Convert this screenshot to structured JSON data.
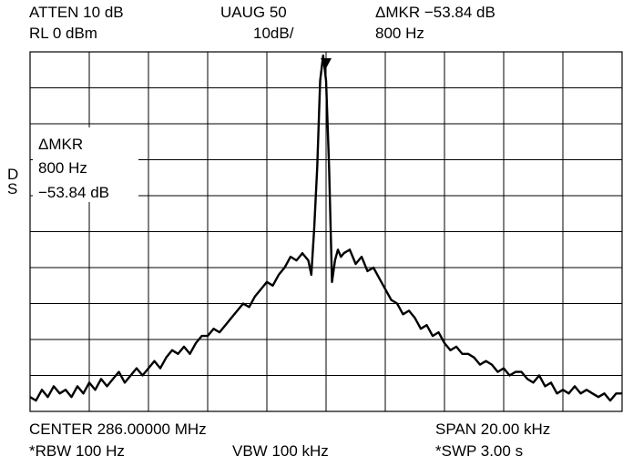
{
  "header": {
    "atten": "ATTEN 10 dB",
    "rl": "RL 0 dBm",
    "vavg": "UAUG 50",
    "scale": "10dB/",
    "dmkr_top": "ΔMKR −53.84 dB",
    "dmkr_freq_top": "800 Hz"
  },
  "footer": {
    "center": "CENTER 286.00000 MHz",
    "span": "SPAN 20.00 kHz",
    "rbw": "*RBW 100 Hz",
    "vbw": "VBW 100 kHz",
    "swp": "*SWP 3.00 s"
  },
  "side": {
    "d": "D",
    "s": "S"
  },
  "marker_box": {
    "title": "ΔMKR",
    "freq": "800 Hz",
    "level": "−53.84 dB"
  },
  "chart_data": {
    "type": "line",
    "title": "",
    "xlabel": "",
    "ylabel": "",
    "x_unit": "kHz offset from center",
    "y_unit": "dBm",
    "xlim": [
      -10,
      10
    ],
    "ylim": [
      -100,
      0
    ],
    "grid": true,
    "grid_divisions": {
      "x": 10,
      "y": 10
    },
    "marker": {
      "x": 0,
      "y": -1,
      "delta_x_hz": 800,
      "delta_y_db": -53.84
    },
    "series": [
      {
        "x": [
          -10.0,
          -9.8,
          -9.6,
          -9.4,
          -9.2,
          -9.0,
          -8.8,
          -8.6,
          -8.4,
          -8.2,
          -8.0,
          -7.8,
          -7.6,
          -7.4,
          -7.2,
          -7.0,
          -6.8,
          -6.6,
          -6.4,
          -6.2,
          -6.0,
          -5.8,
          -5.6,
          -5.4,
          -5.2,
          -5.0,
          -4.8,
          -4.6,
          -4.4,
          -4.2,
          -4.0,
          -3.8,
          -3.6,
          -3.4,
          -3.2,
          -3.0,
          -2.8,
          -2.6,
          -2.4,
          -2.2,
          -2.0,
          -1.8,
          -1.6,
          -1.4,
          -1.2,
          -1.0,
          -0.8,
          -0.6,
          -0.5,
          -0.4,
          -0.3,
          -0.2,
          -0.1,
          0.0,
          0.1,
          0.2,
          0.3,
          0.4,
          0.5,
          0.6,
          0.8,
          1.0,
          1.2,
          1.4,
          1.6,
          1.8,
          2.0,
          2.2,
          2.4,
          2.6,
          2.8,
          3.0,
          3.2,
          3.4,
          3.6,
          3.8,
          4.0,
          4.2,
          4.4,
          4.6,
          4.8,
          5.0,
          5.2,
          5.4,
          5.6,
          5.8,
          6.0,
          6.2,
          6.4,
          6.6,
          6.8,
          7.0,
          7.2,
          7.4,
          7.6,
          7.8,
          8.0,
          8.2,
          8.4,
          8.6,
          8.8,
          9.0,
          9.2,
          9.4,
          9.6,
          9.8,
          10.0
        ],
        "y": [
          -96,
          -97,
          -94,
          -96,
          -93,
          -95,
          -94,
          -96,
          -93,
          -95,
          -92,
          -94,
          -91,
          -93,
          -91,
          -89,
          -92,
          -90,
          -88,
          -90,
          -88,
          -86,
          -88,
          -85,
          -83,
          -84,
          -82,
          -84,
          -81,
          -79,
          -79,
          -77,
          -78,
          -76,
          -74,
          -72,
          -70,
          -71,
          -68,
          -66,
          -64,
          -65,
          -62,
          -60,
          -57,
          -58,
          -56,
          -58,
          -62,
          -49,
          -32,
          -8,
          -1,
          -8,
          -32,
          -64,
          -58,
          -55,
          -57,
          -56,
          -55,
          -59,
          -57,
          -61,
          -60,
          -63,
          -66,
          -69,
          -70,
          -73,
          -72,
          -74,
          -77,
          -76,
          -79,
          -78,
          -81,
          -83,
          -82,
          -84,
          -84,
          -85,
          -87,
          -86,
          -87,
          -89,
          -88,
          -90,
          -89,
          -89,
          -91,
          -92,
          -90,
          -93,
          -92,
          -95,
          -94,
          -95,
          -93,
          -95,
          -94,
          -95,
          -96,
          -95,
          -97,
          -95,
          -95
        ]
      }
    ]
  }
}
